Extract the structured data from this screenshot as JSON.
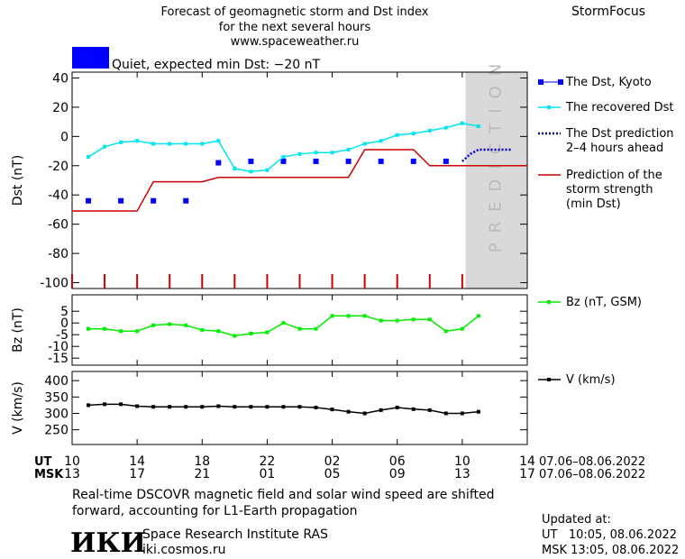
{
  "header": {
    "title_lines": [
      "Forecast of geomagnetic storm and Dst index",
      "for the next several hours",
      "www.spaceweather.ru"
    ],
    "brand": "StormFocus",
    "status": "Quiet, expected min Dst: −20 nT",
    "status_color": "#0000ff"
  },
  "chart_data": [
    {
      "type": "line",
      "ylabel": "Dst (nT)",
      "xlim": [
        10,
        38
      ],
      "ylim": [
        -104,
        44
      ],
      "yticks": [
        40,
        20,
        0,
        -20,
        -40,
        -60,
        -80,
        -100
      ],
      "prediction_zone": {
        "from": 34.2,
        "label": "PREDICTION",
        "color": "#d9d9d9"
      },
      "hour_tick_color": "#cc0000",
      "series": [
        {
          "name": "The Dst, Kyoto",
          "color": "#0000ff",
          "style": "markers",
          "x": [
            11,
            13,
            15,
            17,
            19,
            21,
            23,
            25,
            27,
            29,
            31,
            33
          ],
          "values": [
            -44,
            -44,
            -44,
            -44,
            -18,
            -17,
            -17,
            -17,
            -17,
            -17,
            -17,
            -17
          ]
        },
        {
          "name": "The recovered Dst",
          "color": "#00e5ee",
          "style": "line+markers",
          "x": [
            11,
            12,
            13,
            14,
            15,
            16,
            17,
            18,
            19,
            20,
            21,
            22,
            23,
            24,
            25,
            26,
            27,
            28,
            29,
            30,
            31,
            32,
            33,
            34,
            35
          ],
          "values": [
            -14,
            -7,
            -4,
            -3,
            -5,
            -5,
            -5,
            -5,
            -3,
            -22,
            -24,
            -23,
            -14,
            -12,
            -11,
            -11,
            -9,
            -5,
            -3,
            1,
            2,
            4,
            6,
            9,
            7
          ]
        },
        {
          "name": "The Dst prediction\n2–4 hours ahead",
          "color": "#0000cc",
          "style": "dotted",
          "x": [
            34,
            34.5,
            35,
            36,
            37
          ],
          "values": [
            -17,
            -12,
            -9,
            -9,
            -9
          ]
        },
        {
          "name": "Prediction of the\nstorm strength\n(min Dst)",
          "color": "#cc0000",
          "style": "line",
          "x": [
            10,
            14,
            15,
            18,
            19,
            27,
            28,
            31,
            32,
            38
          ],
          "values": [
            -51,
            -51,
            -31,
            -31,
            -28,
            -28,
            -9,
            -9,
            -20,
            -20
          ]
        }
      ]
    },
    {
      "type": "line",
      "ylabel": "Bz (nT)",
      "xlim": [
        10,
        38
      ],
      "ylim": [
        -18,
        12
      ],
      "yticks": [
        5,
        0,
        -5,
        -10,
        -15
      ],
      "series": [
        {
          "name": "Bz (nT, GSM)",
          "color": "#00ee00",
          "style": "line+markers",
          "x": [
            11,
            12,
            13,
            14,
            15,
            16,
            17,
            18,
            19,
            20,
            21,
            22,
            23,
            24,
            25,
            26,
            27,
            28,
            29,
            30,
            31,
            32,
            33,
            34,
            35
          ],
          "values": [
            -2.5,
            -2.5,
            -3.5,
            -3.5,
            -1,
            -0.5,
            -1,
            -3,
            -3.5,
            -5.5,
            -4.5,
            -4,
            0,
            -2.5,
            -2.5,
            3,
            3,
            3,
            1,
            1,
            1.5,
            1.5,
            -3.5,
            -2.5,
            3
          ]
        }
      ]
    },
    {
      "type": "line",
      "ylabel": "V (km/s)",
      "xlim": [
        10,
        38
      ],
      "ylim": [
        205,
        428
      ],
      "yticks": [
        400,
        350,
        300,
        250
      ],
      "xticks": [
        10,
        14,
        18,
        22,
        {
          "value": 26,
          "label": "02"
        },
        {
          "value": 30,
          "label": "06"
        },
        {
          "value": 34,
          "label": "10"
        },
        {
          "value": 38,
          "label": "14"
        }
      ],
      "x_label": "UT",
      "x2_label": "MSK",
      "x2_tick_labels": [
        "13",
        "17",
        "21",
        "01",
        "05",
        "09",
        "13",
        "17"
      ],
      "date_range": "07.06–08.06.2022",
      "series": [
        {
          "name": "V (km/s)",
          "color": "#000000",
          "style": "line+markers",
          "x": [
            11,
            12,
            13,
            14,
            15,
            16,
            17,
            18,
            19,
            20,
            21,
            22,
            23,
            24,
            25,
            26,
            27,
            28,
            29,
            30,
            31,
            32,
            33,
            34,
            35
          ],
          "values": [
            325,
            328,
            328,
            322,
            320,
            320,
            320,
            320,
            322,
            320,
            320,
            320,
            320,
            320,
            318,
            312,
            305,
            300,
            310,
            318,
            313,
            310,
            300,
            300,
            305
          ]
        }
      ]
    }
  ],
  "footer": {
    "notes": [
      "Real-time DSCOVR magnetic field and solar wind speed are shifted",
      "forward, accounting for L1-Earth propagation"
    ],
    "logo": "ИКИ",
    "institute": "Space Research Institute RAS",
    "url": "iki.cosmos.ru",
    "updated_title": "Updated at:",
    "updated_lines": [
      "UT   10:05, 08.06.2022",
      "MSK 13:05, 08.06.2022"
    ]
  }
}
